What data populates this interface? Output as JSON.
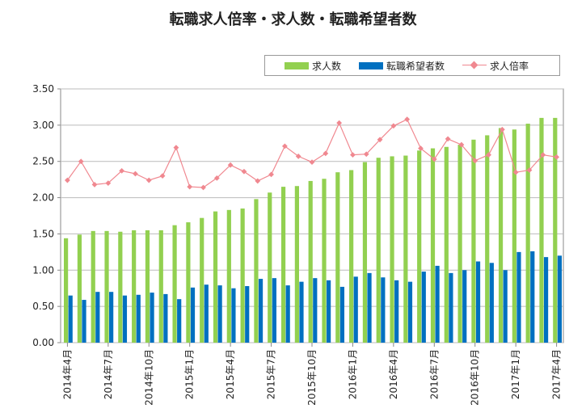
{
  "chart_data": {
    "type": "bar",
    "title": "転職求人倍率・求人数・転職希望者数",
    "categories": [
      "2014年4月",
      "2014年5月",
      "2014年6月",
      "2014年7月",
      "2014年8月",
      "2014年9月",
      "2014年10月",
      "2014年11月",
      "2014年12月",
      "2015年1月",
      "2015年2月",
      "2015年3月",
      "2015年4月",
      "2015年5月",
      "2015年6月",
      "2015年7月",
      "2015年8月",
      "2015年9月",
      "2015年10月",
      "2015年11月",
      "2015年12月",
      "2016年1月",
      "2016年2月",
      "2016年3月",
      "2016年4月",
      "2016年5月",
      "2016年6月",
      "2016年7月",
      "2016年8月",
      "2016年9月",
      "2016年10月",
      "2016年11月",
      "2016年12月",
      "2017年1月",
      "2017年2月",
      "2017年3月",
      "2017年4月"
    ],
    "xtick_labels": [
      "2014年4月",
      "2014年7月",
      "2014年10月",
      "2015年1月",
      "2015年4月",
      "2015年7月",
      "2015年10月",
      "2016年1月",
      "2016年4月",
      "2016年7月",
      "2016年10月",
      "2017年1月",
      "2017年4月"
    ],
    "xtick_step": 3,
    "ylim": [
      0,
      3.5
    ],
    "yticks": [
      "0.00",
      "0.50",
      "1.00",
      "1.50",
      "2.00",
      "2.50",
      "3.00",
      "3.50"
    ],
    "grid": true,
    "legend_position": "top-right",
    "series": [
      {
        "name": "求人数",
        "type": "bar",
        "color": "#92d050",
        "values": [
          1.44,
          1.49,
          1.54,
          1.54,
          1.53,
          1.55,
          1.55,
          1.55,
          1.62,
          1.66,
          1.72,
          1.81,
          1.83,
          1.85,
          1.98,
          2.07,
          2.15,
          2.16,
          2.23,
          2.26,
          2.35,
          2.38,
          2.49,
          2.55,
          2.57,
          2.58,
          2.65,
          2.68,
          2.7,
          2.73,
          2.8,
          2.86,
          2.96,
          2.94,
          3.02,
          3.1,
          3.1
        ]
      },
      {
        "name": "転職希望者数",
        "type": "bar",
        "color": "#0070c0",
        "values": [
          0.65,
          0.59,
          0.7,
          0.7,
          0.65,
          0.66,
          0.69,
          0.67,
          0.6,
          0.76,
          0.8,
          0.79,
          0.75,
          0.78,
          0.88,
          0.89,
          0.79,
          0.84,
          0.89,
          0.86,
          0.77,
          0.91,
          0.96,
          0.9,
          0.86,
          0.84,
          0.98,
          1.06,
          0.96,
          1.0,
          1.12,
          1.1,
          1.0,
          1.25,
          1.26,
          1.18,
          1.2
        ]
      },
      {
        "name": "求人倍率",
        "type": "line",
        "color": "#f08890",
        "values": [
          2.24,
          2.5,
          2.18,
          2.2,
          2.37,
          2.33,
          2.24,
          2.3,
          2.69,
          2.15,
          2.14,
          2.27,
          2.45,
          2.36,
          2.23,
          2.32,
          2.71,
          2.57,
          2.49,
          2.61,
          3.03,
          2.59,
          2.6,
          2.8,
          2.99,
          3.08,
          2.68,
          2.53,
          2.81,
          2.73,
          2.51,
          2.59,
          2.94,
          2.35,
          2.38,
          2.59,
          2.56
        ]
      }
    ]
  }
}
